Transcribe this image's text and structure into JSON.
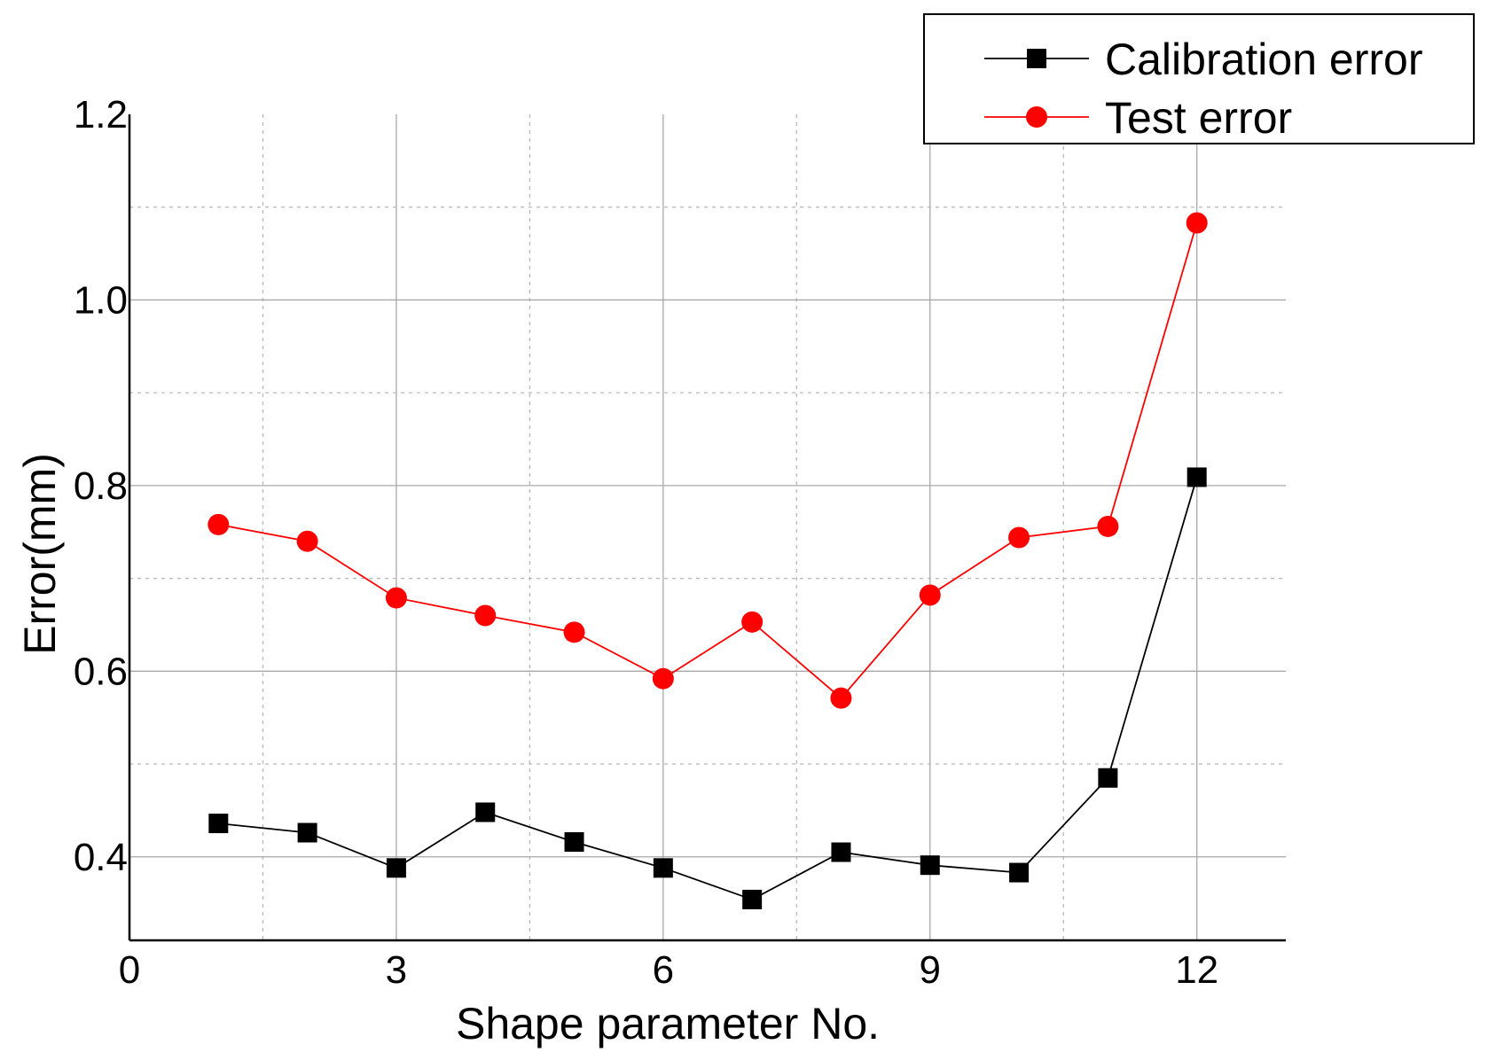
{
  "chart_data": {
    "type": "line",
    "xlabel": "Shape parameter No.",
    "ylabel": "Error(mm)",
    "xlim": [
      0,
      13
    ],
    "ylim": [
      0.31,
      1.2
    ],
    "x_ticks": [
      0,
      3,
      6,
      9,
      12
    ],
    "x_tick_labels": [
      "0",
      "3",
      "6",
      "9",
      "12"
    ],
    "x_minor_ticks": [
      1.5,
      4.5,
      7.5,
      10.5
    ],
    "y_ticks": [
      0.4,
      0.6,
      0.8,
      1.0,
      1.2
    ],
    "y_tick_labels": [
      "0.4",
      "0.6",
      "0.8",
      "1.0",
      "1.2"
    ],
    "y_minor_ticks": [
      0.5,
      0.7,
      0.9,
      1.1
    ],
    "grid": true,
    "legend_position": "top-right",
    "x": [
      1,
      2,
      3,
      4,
      5,
      6,
      7,
      8,
      9,
      10,
      11,
      12
    ],
    "series": [
      {
        "name": "Calibration error",
        "color": "#000000",
        "marker": "square",
        "values": [
          0.436,
          0.426,
          0.388,
          0.448,
          0.416,
          0.388,
          0.354,
          0.405,
          0.391,
          0.383,
          0.485,
          0.809
        ]
      },
      {
        "name": "Test error",
        "color": "#ff0000",
        "marker": "circle",
        "values": [
          0.758,
          0.74,
          0.679,
          0.66,
          0.642,
          0.592,
          0.653,
          0.571,
          0.682,
          0.744,
          0.756,
          1.083
        ]
      }
    ]
  }
}
